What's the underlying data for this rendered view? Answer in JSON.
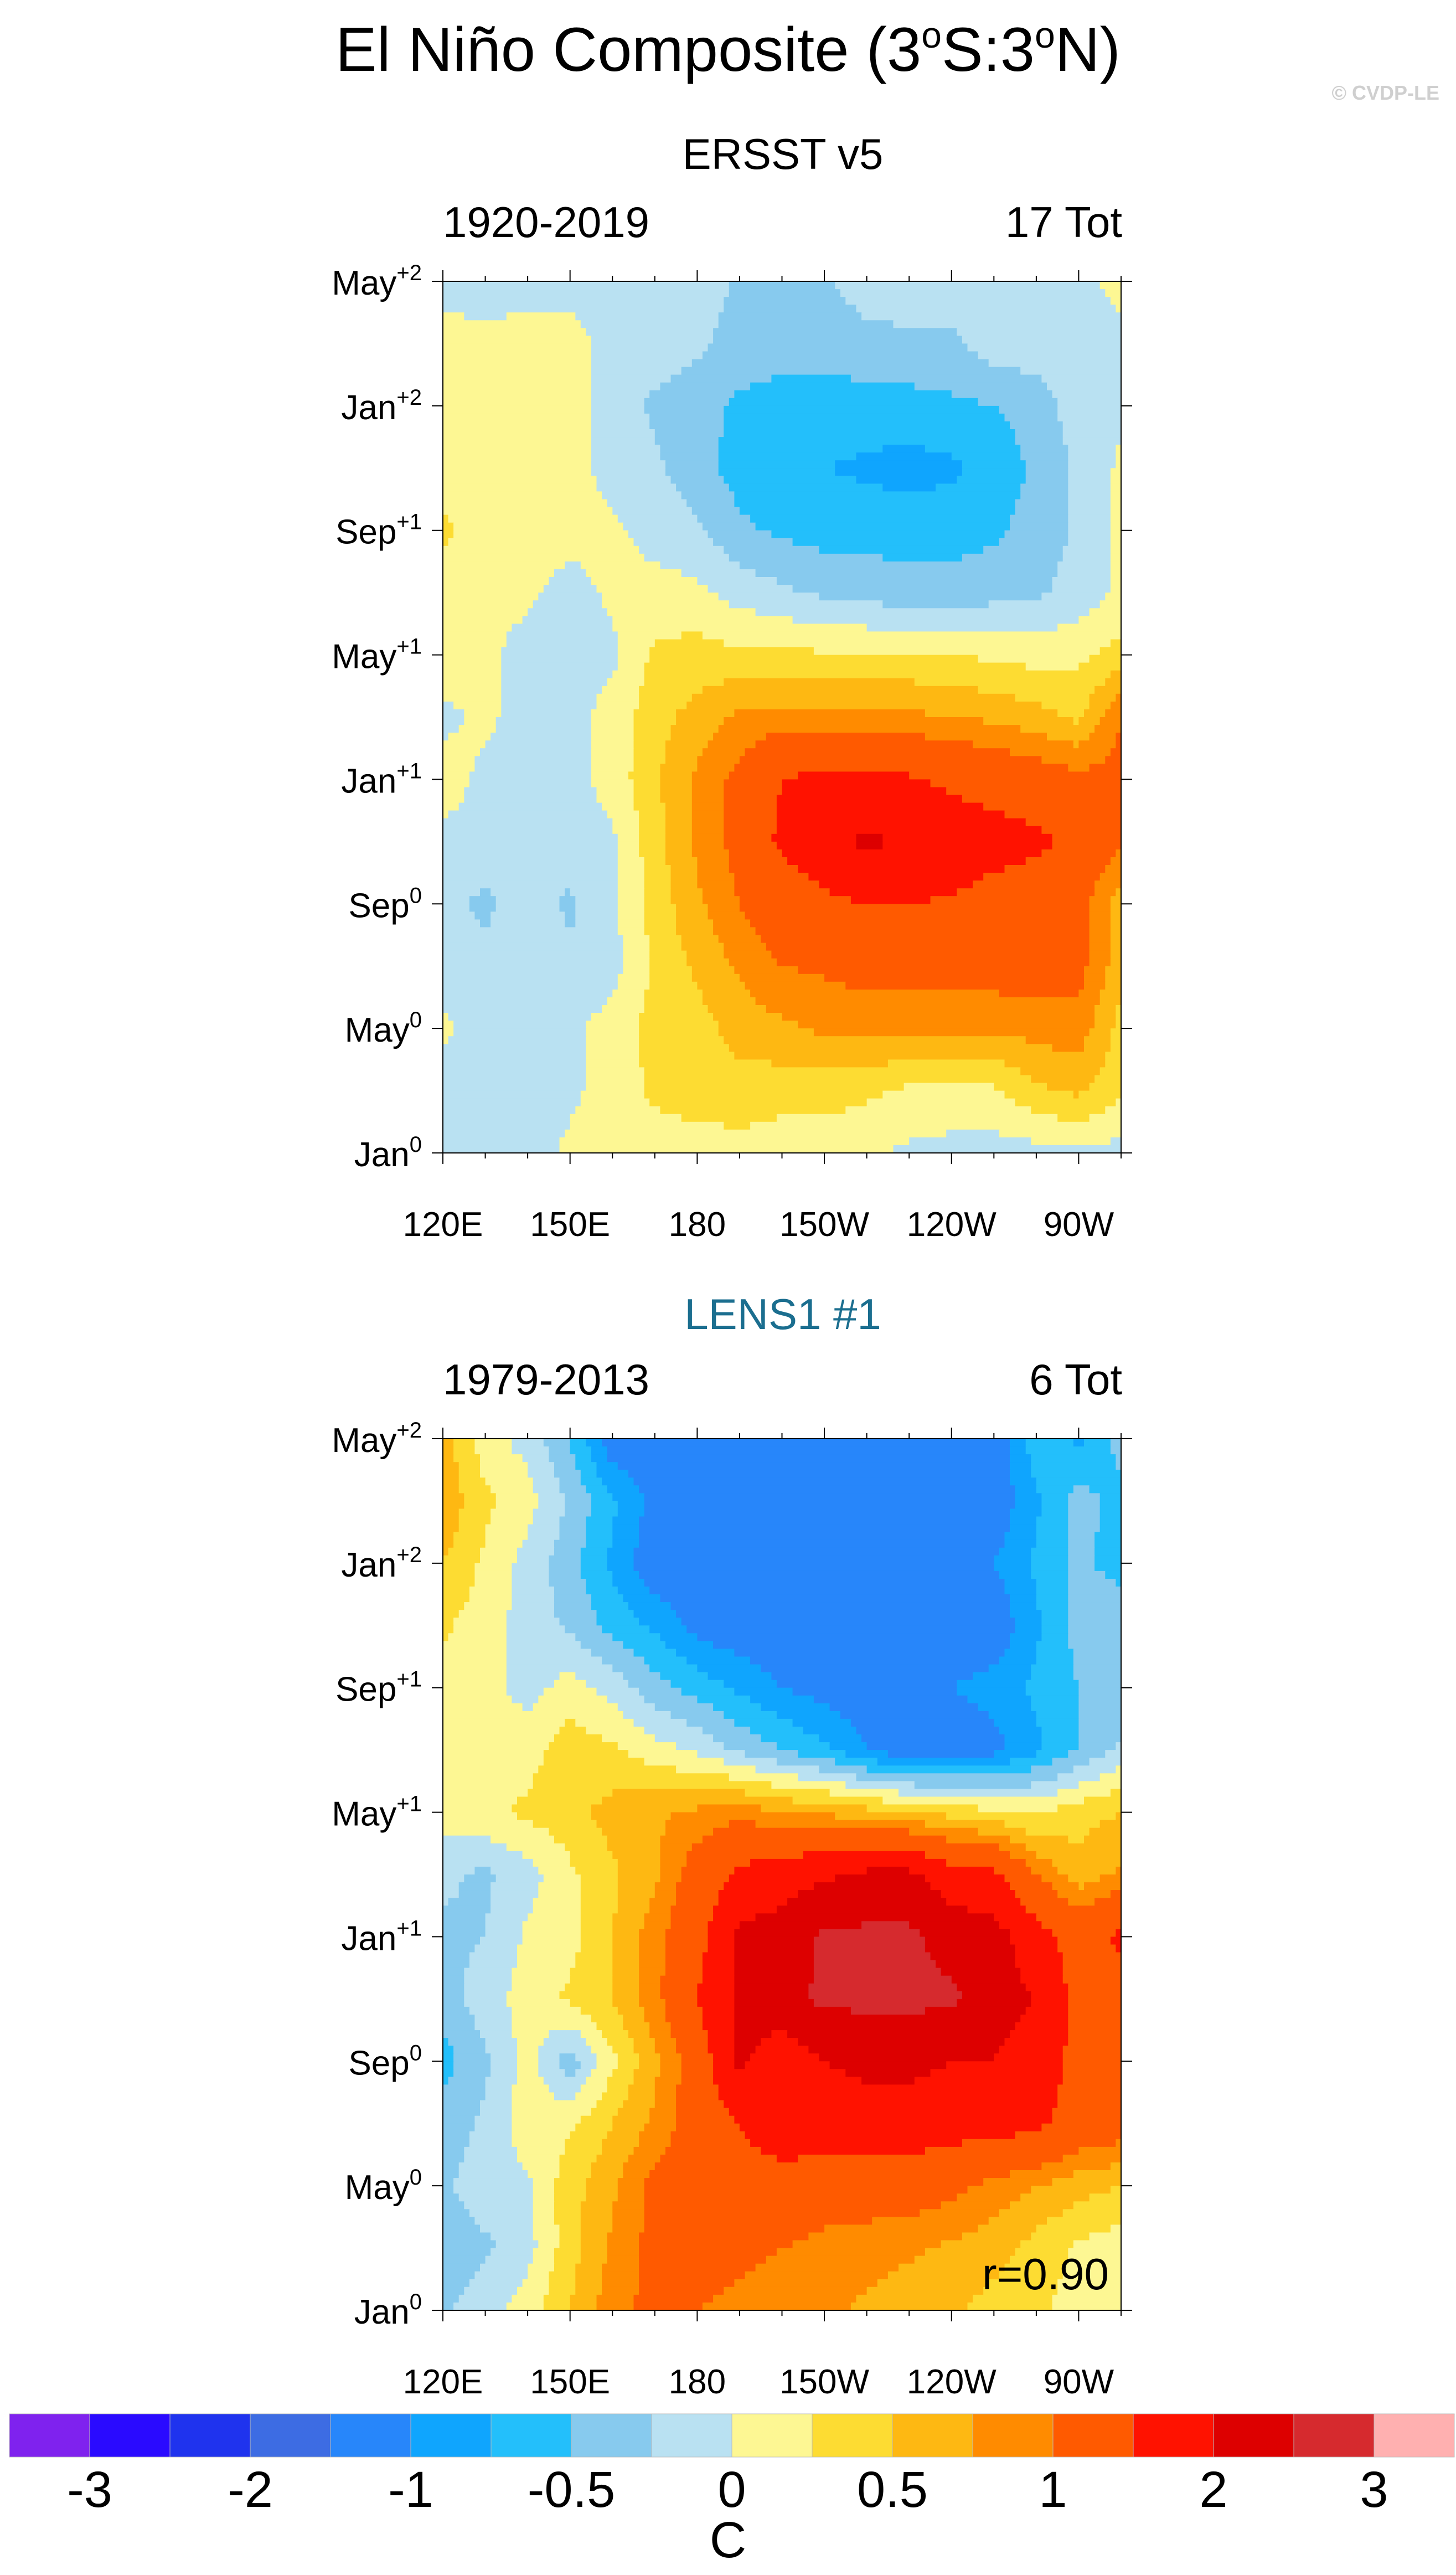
{
  "header": {
    "title_parts": [
      "El Niño Composite (3",
      "o",
      "S:3",
      "o",
      "N)"
    ],
    "copyright": "© CVDP-LE"
  },
  "chart_data": [
    {
      "type": "heatmap",
      "title": "ERSST v5",
      "title_color": "#000000",
      "left_subtitle": "1920-2019",
      "right_subtitle": "17 Tot",
      "annotation": "",
      "xlabel": "",
      "ylabel": "",
      "x_values_degE": [
        120,
        130,
        140,
        150,
        160,
        170,
        180,
        190,
        200,
        210,
        220,
        230,
        240,
        250,
        260,
        270,
        280
      ],
      "y_months_top_to_bottom": [
        28,
        26,
        24,
        22,
        20,
        18,
        16,
        14,
        12,
        10,
        8,
        6,
        4,
        2,
        0
      ],
      "z": [
        [
          -0.1,
          -0.1,
          -0.1,
          -0.1,
          -0.1,
          -0.1,
          -0.1,
          -0.3,
          -0.3,
          -0.3,
          -0.1,
          -0.1,
          -0.1,
          -0.1,
          -0.1,
          -0.1,
          0.1
        ],
        [
          0.1,
          0.05,
          0.1,
          0.1,
          -0.1,
          -0.1,
          -0.2,
          -0.35,
          -0.4,
          -0.4,
          -0.35,
          -0.3,
          -0.3,
          -0.1,
          -0.1,
          -0.1,
          -0.1
        ],
        [
          0.05,
          0.1,
          0.15,
          0.1,
          -0.1,
          -0.3,
          -0.4,
          -0.55,
          -0.6,
          -0.6,
          -0.6,
          -0.6,
          -0.55,
          -0.5,
          -0.4,
          -0.1,
          -0.05
        ],
        [
          0.1,
          0.15,
          0.15,
          0.1,
          -0.1,
          -0.2,
          -0.4,
          -0.6,
          -0.7,
          -0.75,
          -0.8,
          -0.85,
          -0.8,
          -0.65,
          -0.45,
          -0.2,
          0.05
        ],
        [
          0.3,
          0.15,
          0.1,
          0.1,
          0.05,
          -0.1,
          -0.2,
          -0.45,
          -0.55,
          -0.6,
          -0.6,
          -0.6,
          -0.6,
          -0.55,
          -0.4,
          -0.2,
          0.05
        ],
        [
          0.1,
          0.1,
          0.05,
          -0.1,
          0.05,
          0.1,
          0.05,
          -0.1,
          -0.2,
          -0.3,
          -0.35,
          -0.4,
          -0.4,
          -0.35,
          -0.3,
          -0.15,
          0.05
        ],
        [
          0.1,
          0.05,
          -0.1,
          -0.1,
          -0.05,
          0.3,
          0.35,
          0.3,
          0.3,
          0.28,
          0.27,
          0.27,
          0.26,
          0.2,
          0.15,
          0.2,
          0.35
        ],
        [
          -0.05,
          0.05,
          -0.1,
          -0.1,
          0.1,
          0.4,
          0.6,
          0.8,
          0.85,
          0.85,
          0.8,
          0.8,
          0.75,
          0.7,
          0.6,
          0.45,
          1.0
        ],
        [
          0.1,
          -0.05,
          -0.1,
          -0.1,
          0.1,
          0.45,
          0.8,
          1.1,
          1.5,
          1.6,
          1.6,
          1.55,
          1.4,
          1.3,
          1.2,
          1.1,
          1.1
        ],
        [
          -0.05,
          -0.1,
          -0.1,
          -0.1,
          -0.05,
          0.4,
          0.8,
          1.1,
          1.6,
          1.8,
          2.1,
          1.9,
          1.8,
          1.7,
          1.6,
          1.4,
          1.0
        ],
        [
          -0.2,
          -0.3,
          -0.1,
          -0.3,
          -0.05,
          0.35,
          0.7,
          1.0,
          1.2,
          1.4,
          1.5,
          1.5,
          1.45,
          1.3,
          1.2,
          1.1,
          0.6
        ],
        [
          -0.1,
          -0.2,
          -0.1,
          -0.2,
          -0.1,
          0.3,
          0.55,
          0.8,
          1.0,
          1.05,
          1.1,
          1.15,
          1.15,
          1.15,
          1.15,
          1.1,
          0.6
        ],
        [
          0.05,
          -0.1,
          -0.1,
          -0.05,
          0.1,
          0.35,
          0.4,
          0.6,
          0.7,
          0.8,
          0.85,
          0.8,
          0.8,
          0.8,
          0.85,
          0.9,
          0.4
        ],
        [
          -0.1,
          -0.1,
          -0.1,
          -0.05,
          0.1,
          0.3,
          0.4,
          0.4,
          0.35,
          0.35,
          0.3,
          0.2,
          0.2,
          0.2,
          0.45,
          0.55,
          0.3
        ],
        [
          -0.1,
          -0.1,
          -0.1,
          0.05,
          0.1,
          0.1,
          0.1,
          0.15,
          0.1,
          0.1,
          0.05,
          -0.05,
          -0.1,
          -0.1,
          -0.1,
          -0.05,
          -0.1
        ]
      ]
    },
    {
      "type": "heatmap",
      "title": "LENS1 #1",
      "title_color": "#1b6e8f",
      "left_subtitle": "1979-2013",
      "right_subtitle": "6 Tot",
      "annotation": "r=0.90",
      "xlabel": "",
      "ylabel": "",
      "x_values_degE": [
        120,
        130,
        140,
        150,
        160,
        170,
        180,
        190,
        200,
        210,
        220,
        230,
        240,
        250,
        260,
        270,
        280
      ],
      "y_months_top_to_bottom": [
        28,
        26,
        24,
        22,
        20,
        18,
        16,
        14,
        12,
        10,
        8,
        6,
        4,
        2,
        0
      ],
      "z": [
        [
          0.6,
          0.1,
          -0.1,
          -0.5,
          -1.2,
          -1.2,
          -1.2,
          -1.2,
          -1.2,
          -1.2,
          -1.2,
          -1.2,
          -1.2,
          -1.2,
          -0.6,
          -0.8,
          -0.4
        ],
        [
          0.7,
          0.3,
          0.1,
          -0.3,
          -0.7,
          -1.1,
          -1.3,
          -1.3,
          -1.3,
          -1.3,
          -1.3,
          -1.3,
          -1.3,
          -1.2,
          -0.8,
          -0.4,
          -0.6
        ],
        [
          0.5,
          0.2,
          -0.1,
          -0.4,
          -0.8,
          -1.2,
          -1.2,
          -1.2,
          -1.2,
          -1.2,
          -1.2,
          -1.2,
          -1.2,
          -1.0,
          -0.7,
          -0.45,
          -0.6
        ],
        [
          0.3,
          0.1,
          -0.1,
          -0.3,
          -0.6,
          -0.8,
          -1.1,
          -1.2,
          -1.2,
          -1.2,
          -1.2,
          -1.2,
          -1.2,
          -1.2,
          -0.8,
          -0.4,
          -0.3
        ],
        [
          0.15,
          0.1,
          -0.1,
          0.1,
          -0.1,
          -0.4,
          -0.6,
          -0.8,
          -1.0,
          -1.1,
          -1.2,
          -1.2,
          -1.0,
          -0.9,
          -0.7,
          -0.5,
          -0.4
        ],
        [
          0.1,
          0.1,
          0.15,
          0.4,
          0.3,
          0.1,
          -0.05,
          -0.3,
          -0.5,
          -0.7,
          -1.0,
          -1.2,
          -1.2,
          -1.1,
          -0.8,
          -0.5,
          -0.2
        ],
        [
          0.1,
          0.2,
          0.3,
          0.4,
          0.6,
          0.7,
          0.8,
          0.9,
          0.75,
          0.7,
          0.6,
          0.5,
          0.4,
          0.3,
          0.2,
          0.4,
          0.5
        ],
        [
          -0.2,
          -0.3,
          -0.1,
          0.2,
          0.45,
          0.7,
          1.2,
          1.6,
          1.8,
          1.9,
          2.1,
          2.1,
          1.7,
          1.6,
          1.0,
          0.6,
          0.8
        ],
        [
          -0.3,
          -0.25,
          0.05,
          0.15,
          0.5,
          0.9,
          1.3,
          2.1,
          2.2,
          2.6,
          2.6,
          2.6,
          2.3,
          2.2,
          1.7,
          1.3,
          1.6
        ],
        [
          -0.4,
          -0.1,
          0.1,
          0.3,
          0.5,
          0.9,
          1.5,
          2.1,
          2.3,
          2.6,
          2.6,
          2.6,
          2.6,
          2.2,
          2.0,
          1.3,
          1.3
        ],
        [
          -0.6,
          -0.3,
          0.1,
          -0.4,
          0.2,
          0.7,
          1.2,
          2.1,
          1.7,
          2.0,
          2.1,
          2.1,
          2.0,
          2.0,
          1.7,
          1.4,
          1.2
        ],
        [
          -0.4,
          -0.2,
          0.15,
          0.2,
          0.5,
          0.8,
          1.2,
          1.5,
          1.8,
          1.8,
          1.8,
          1.8,
          1.7,
          1.7,
          1.6,
          1.3,
          1.2
        ],
        [
          -0.3,
          -0.1,
          -0.05,
          0.4,
          0.7,
          1.1,
          1.2,
          1.3,
          1.3,
          1.2,
          1.2,
          1.2,
          1.1,
          0.9,
          0.75,
          0.6,
          0.5
        ],
        [
          -0.5,
          -0.3,
          -0.1,
          0.4,
          0.8,
          1.1,
          1.2,
          1.1,
          1.0,
          0.9,
          0.85,
          0.8,
          0.7,
          0.6,
          0.4,
          0.2,
          0.1
        ],
        [
          -0.3,
          -0.1,
          0.15,
          0.5,
          0.9,
          1.1,
          1.0,
          0.9,
          0.8,
          0.8,
          0.7,
          0.6,
          0.55,
          0.4,
          0.3,
          0.15,
          0.2
        ]
      ]
    }
  ],
  "axes": {
    "x_ticks": [
      {
        "lon": 120,
        "label": "120E"
      },
      {
        "lon": 150,
        "label": "150E"
      },
      {
        "lon": 180,
        "label": "180"
      },
      {
        "lon": 210,
        "label": "150W"
      },
      {
        "lon": 240,
        "label": "120W"
      },
      {
        "lon": 270,
        "label": "90W"
      }
    ],
    "x_range_degE": [
      120,
      280
    ],
    "y_range_months": [
      0,
      28
    ],
    "y_ticks": [
      {
        "month": 0,
        "base": "Jan",
        "sup": "0"
      },
      {
        "month": 4,
        "base": "May",
        "sup": "0"
      },
      {
        "month": 8,
        "base": "Sep",
        "sup": "0"
      },
      {
        "month": 12,
        "base": "Jan",
        "sup": "+1"
      },
      {
        "month": 16,
        "base": "May",
        "sup": "+1"
      },
      {
        "month": 20,
        "base": "Sep",
        "sup": "+1"
      },
      {
        "month": 24,
        "base": "Jan",
        "sup": "+2"
      },
      {
        "month": 28,
        "base": "May",
        "sup": "+2"
      }
    ]
  },
  "colorbar": {
    "levels": [
      -3,
      -2.5,
      -2,
      -1.5,
      -1,
      -0.75,
      -0.5,
      -0.25,
      0,
      0.25,
      0.5,
      0.75,
      1,
      1.5,
      2,
      2.5,
      3
    ],
    "colors": [
      "#7f22ee",
      "#2a0aff",
      "#1f33ee",
      "#3d6ce3",
      "#2786fa",
      "#0fa5fe",
      "#23bffb",
      "#87caee",
      "#b9e1f2",
      "#fdf793",
      "#fddc32",
      "#feb812",
      "#ff8b00",
      "#ff5a00",
      "#ff1200",
      "#dd0000",
      "#d62a2e",
      "#ffb0b0"
    ],
    "labels": [
      {
        "value": -3,
        "text": "-3"
      },
      {
        "value": -2,
        "text": "-2"
      },
      {
        "value": -1,
        "text": "-1"
      },
      {
        "value": -0.5,
        "text": "-0.5"
      },
      {
        "value": 0,
        "text": "0"
      },
      {
        "value": 0.5,
        "text": "0.5"
      },
      {
        "value": 1,
        "text": "1"
      },
      {
        "value": 2,
        "text": "2"
      },
      {
        "value": 3,
        "text": "3"
      }
    ],
    "units": "C"
  }
}
